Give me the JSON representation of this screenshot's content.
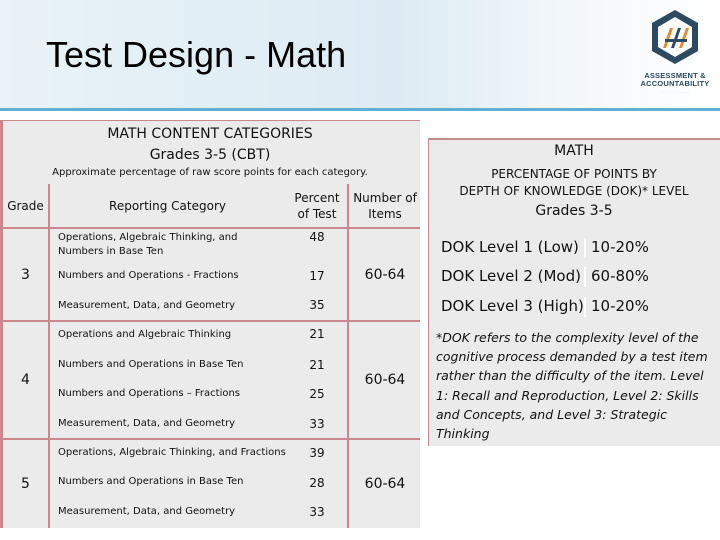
{
  "header": {
    "title": "Test Design - Math",
    "logo_line1": "ASSESSMENT &",
    "logo_line2": "ACCOUNTABILITY",
    "logo_sub": "· · · · · · · · · · · · · · · · ·"
  },
  "left": {
    "title_line1": "MATH CONTENT CATEGORIES",
    "title_line2": "Grades 3-5 (CBT)",
    "subtitle": "Approximate percentage of raw score points for each category.",
    "col_grade": "Grade",
    "col_category": "Reporting Category",
    "col_percent": "Percent of Test",
    "col_number": "Number of Items",
    "grades": [
      {
        "grade": "3",
        "number": "60-64",
        "rows": [
          {
            "category": "Operations, Algebraic Thinking, and Numbers in Base Ten",
            "percent": "48"
          },
          {
            "category": "Numbers and Operations - Fractions",
            "percent": "17"
          },
          {
            "category": "Measurement, Data, and Geometry",
            "percent": "35"
          }
        ]
      },
      {
        "grade": "4",
        "number": "60-64",
        "rows": [
          {
            "category": "Operations and Algebraic Thinking",
            "percent": "21"
          },
          {
            "category": "Numbers and Operations in Base Ten",
            "percent": "21"
          },
          {
            "category": "Numbers and Operations – Fractions",
            "percent": "25"
          },
          {
            "category": "Measurement, Data, and Geometry",
            "percent": "33"
          }
        ]
      },
      {
        "grade": "5",
        "number": "60-64",
        "rows": [
          {
            "category": "Operations, Algebraic Thinking, and Fractions",
            "percent": "39"
          },
          {
            "category": "Numbers and Operations in Base Ten",
            "percent": "28"
          },
          {
            "category": "Measurement, Data, and Geometry",
            "percent": "33"
          }
        ]
      }
    ]
  },
  "right": {
    "heading1": "MATH",
    "heading2_line1": "PERCENTAGE OF POINTS BY",
    "heading2_line2": "DEPTH OF KNOWLEDGE (DOK)* LEVEL",
    "heading3": "Grades 3-5",
    "dok": [
      {
        "label": "DOK Level 1 (Low)",
        "value": "10-20%"
      },
      {
        "label": "DOK Level 2 (Mod)",
        "value": "60-80%"
      },
      {
        "label": "DOK Level 3 (High)",
        "value": "10-20%"
      }
    ],
    "note": "*DOK refers to the complexity level of the cognitive process demanded by a test item rather than the difficulty of the item. Level 1: Recall and Reproduction, Level 2: Skills and Concepts, and Level 3: Strategic Thinking"
  },
  "colors": {
    "header_accent": "#5fb0d4",
    "table_border": "#c9898c",
    "panel_bg": "#ebebeb",
    "logo_blue": "#2c4a60",
    "logo_orange": "#e8892b"
  }
}
